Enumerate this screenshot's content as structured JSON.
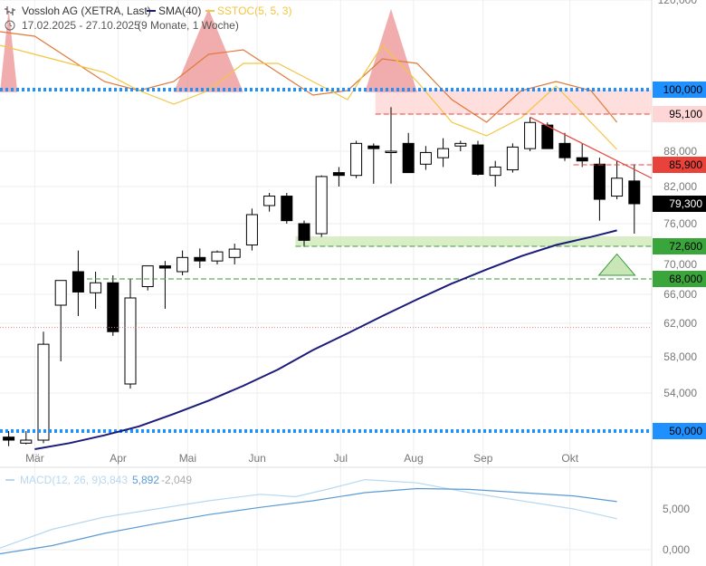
{
  "header": {
    "title": "Vossloh AG (XETRA, Last)",
    "sma_label": "SMA(40)",
    "sstoc_label": "SSTOC(5, 5, 3)",
    "date_range": "17.02.2025 - 27.10.2025",
    "period": "(9 Monate, 1 Woche)"
  },
  "colors": {
    "sma": "#1b1b7a",
    "sstoc": "#f2c641",
    "macd_line": "#5b9bd5",
    "macd_signal": "#b8d8f0",
    "support_blue": "#1e90ff",
    "resistance_red": "#e8423a",
    "candle_up": "#ffffff",
    "candle_down": "#000000",
    "green_zone": "#cfe8b8",
    "red_zone": "#ffd6d6"
  },
  "chart_data": {
    "type": "candlestick",
    "ylim": [
      47,
      120
    ],
    "y_ticks": [
      "54,000",
      "58,000",
      "62,000",
      "66,000",
      "70,000",
      "76,000",
      "82,000",
      "88,000",
      "120,000"
    ],
    "x_tick_labels": [
      "Mär",
      "Apr",
      "Mai",
      "Jun",
      "Jul",
      "Aug",
      "Sep",
      "Okt"
    ],
    "x_tick_weeks": [
      2,
      6.8,
      10.8,
      14.8,
      19.6,
      23.8,
      27.8,
      32.8
    ],
    "weeks": [
      {
        "o": 49.0,
        "h": 50.0,
        "l": 47.5,
        "c": 48.5
      },
      {
        "o": 48.0,
        "h": 50.0,
        "l": 47.8,
        "c": 48.5
      },
      {
        "o": 48.5,
        "h": 61.0,
        "l": 48.0,
        "c": 59.5
      },
      {
        "o": 64.5,
        "h": 67.5,
        "l": 57.5,
        "c": 67.8
      },
      {
        "o": 69.0,
        "h": 72.0,
        "l": 63.0,
        "c": 66.3
      },
      {
        "o": 66.2,
        "h": 69.0,
        "l": 64.0,
        "c": 67.5
      },
      {
        "o": 67.5,
        "h": 68.5,
        "l": 60.5,
        "c": 61.0
      },
      {
        "o": 55.0,
        "h": 68.0,
        "l": 54.5,
        "c": 65.5
      },
      {
        "o": 67.0,
        "h": 69.5,
        "l": 66.5,
        "c": 69.8
      },
      {
        "o": 69.8,
        "h": 70.5,
        "l": 64.0,
        "c": 69.5
      },
      {
        "o": 69.0,
        "h": 72.0,
        "l": 68.5,
        "c": 71.0
      },
      {
        "o": 71.0,
        "h": 72.3,
        "l": 69.5,
        "c": 70.5
      },
      {
        "o": 70.5,
        "h": 72.0,
        "l": 70.0,
        "c": 71.8
      },
      {
        "o": 71.0,
        "h": 73.0,
        "l": 70.0,
        "c": 72.2
      },
      {
        "o": 72.8,
        "h": 78.5,
        "l": 72.0,
        "c": 77.5
      },
      {
        "o": 79.0,
        "h": 81.0,
        "l": 78.0,
        "c": 80.5
      },
      {
        "o": 80.5,
        "h": 81.0,
        "l": 76.0,
        "c": 76.5
      },
      {
        "o": 76.0,
        "h": 76.5,
        "l": 72.5,
        "c": 73.5
      },
      {
        "o": 74.5,
        "h": 84.0,
        "l": 74.0,
        "c": 83.8
      },
      {
        "o": 84.5,
        "h": 85.5,
        "l": 82.0,
        "c": 84.0
      },
      {
        "o": 84.0,
        "h": 90.0,
        "l": 83.5,
        "c": 89.5
      },
      {
        "o": 89.0,
        "h": 89.5,
        "l": 82.5,
        "c": 88.5
      },
      {
        "o": 88.0,
        "h": 96.5,
        "l": 82.5,
        "c": 88.0
      },
      {
        "o": 89.5,
        "h": 91.5,
        "l": 84.5,
        "c": 84.5
      },
      {
        "o": 86.0,
        "h": 89.0,
        "l": 85.0,
        "c": 87.8
      },
      {
        "o": 87.0,
        "h": 90.5,
        "l": 85.5,
        "c": 88.5
      },
      {
        "o": 89.0,
        "h": 90.0,
        "l": 88.0,
        "c": 89.5
      },
      {
        "o": 89.2,
        "h": 90.0,
        "l": 84.0,
        "c": 84.2
      },
      {
        "o": 84.0,
        "h": 86.5,
        "l": 82.0,
        "c": 85.5
      },
      {
        "o": 85.0,
        "h": 89.5,
        "l": 84.5,
        "c": 88.8
      },
      {
        "o": 88.5,
        "h": 94.5,
        "l": 88.0,
        "c": 93.5
      },
      {
        "o": 93.0,
        "h": 93.5,
        "l": 88.5,
        "c": 88.5
      },
      {
        "o": 89.5,
        "h": 91.5,
        "l": 86.5,
        "c": 87.0
      },
      {
        "o": 87.0,
        "h": 89.5,
        "l": 85.5,
        "c": 86.5
      },
      {
        "o": 86.0,
        "h": 87.0,
        "l": 76.5,
        "c": 80.0
      },
      {
        "o": 80.5,
        "h": 86.5,
        "l": 80.0,
        "c": 83.5
      },
      {
        "o": 83.0,
        "h": 86.0,
        "l": 74.5,
        "c": 79.3
      }
    ],
    "sma40": [
      [
        2,
        47.0
      ],
      [
        4,
        48.0
      ],
      [
        6,
        49.3
      ],
      [
        8,
        50.5
      ],
      [
        10,
        51.8
      ],
      [
        12,
        53.2
      ],
      [
        14,
        54.8
      ],
      [
        16,
        56.6
      ],
      [
        18,
        58.8
      ],
      [
        20,
        60.8
      ],
      [
        22,
        63.0
      ],
      [
        24,
        65.3
      ],
      [
        26,
        67.4
      ],
      [
        28,
        69.3
      ],
      [
        30,
        71.2
      ],
      [
        32,
        72.8
      ],
      [
        34,
        74.0
      ],
      [
        35.5,
        75.0
      ]
    ],
    "sstoc_fast": [
      [
        0,
        90
      ],
      [
        2,
        88
      ],
      [
        4,
        86
      ],
      [
        6,
        84
      ],
      [
        8,
        80
      ],
      [
        10,
        77
      ],
      [
        12,
        80
      ],
      [
        14,
        86
      ],
      [
        16,
        86
      ],
      [
        18,
        82
      ],
      [
        20,
        78
      ],
      [
        22,
        90
      ],
      [
        24,
        82
      ],
      [
        26,
        73
      ],
      [
        28,
        70
      ],
      [
        30,
        74
      ],
      [
        32,
        81
      ],
      [
        34,
        73
      ],
      [
        35.5,
        67
      ]
    ],
    "sstoc_slow": [
      [
        0,
        93
      ],
      [
        2,
        92
      ],
      [
        4,
        87
      ],
      [
        6,
        82
      ],
      [
        8,
        80
      ],
      [
        10,
        82
      ],
      [
        12,
        88
      ],
      [
        14,
        89
      ],
      [
        16,
        84
      ],
      [
        18,
        79
      ],
      [
        20,
        80
      ],
      [
        22,
        87
      ],
      [
        24,
        86
      ],
      [
        26,
        78
      ],
      [
        28,
        73
      ],
      [
        30,
        80
      ],
      [
        32,
        82
      ],
      [
        34,
        80
      ],
      [
        35.5,
        73
      ]
    ],
    "levels": {
      "support_main": "50,000",
      "support_main_value": 50.0,
      "resistance_main": "100,000",
      "resistance_main_value": 100.0,
      "level_95": "95,100",
      "level_95_value": 95.1,
      "level_85": "85,900",
      "level_85_value": 85.9,
      "level_last": "79,300",
      "level_last_value": 79.3,
      "level_72": "72,600",
      "level_72_value": 72.6,
      "level_68": "68,000",
      "level_68_value": 68.0,
      "level_61_value": 61.5
    },
    "macd": {
      "label": "MACD(12, 26, 9)",
      "v1": "3,843",
      "v2": "5,892",
      "v3": "-2,049",
      "ticks": [
        "5,000",
        "0,000"
      ],
      "ylim": [
        -2,
        10
      ],
      "line": [
        [
          0,
          -0.5
        ],
        [
          3,
          0.5
        ],
        [
          6,
          2.0
        ],
        [
          9,
          3.2
        ],
        [
          12,
          4.3
        ],
        [
          15,
          5.2
        ],
        [
          18,
          6.0
        ],
        [
          21,
          7.0
        ],
        [
          24,
          7.5
        ],
        [
          27,
          7.4
        ],
        [
          30,
          7.0
        ],
        [
          33,
          6.6
        ],
        [
          35.5,
          5.9
        ]
      ],
      "signal": [
        [
          0,
          0.2
        ],
        [
          3,
          2.5
        ],
        [
          6,
          4.0
        ],
        [
          9,
          5.0
        ],
        [
          12,
          6.0
        ],
        [
          15,
          6.8
        ],
        [
          17,
          6.5
        ],
        [
          19,
          7.5
        ],
        [
          21,
          8.6
        ],
        [
          24,
          8.2
        ],
        [
          27,
          7.0
        ],
        [
          30,
          6.0
        ],
        [
          33,
          5.0
        ],
        [
          35.5,
          3.8
        ]
      ]
    }
  }
}
